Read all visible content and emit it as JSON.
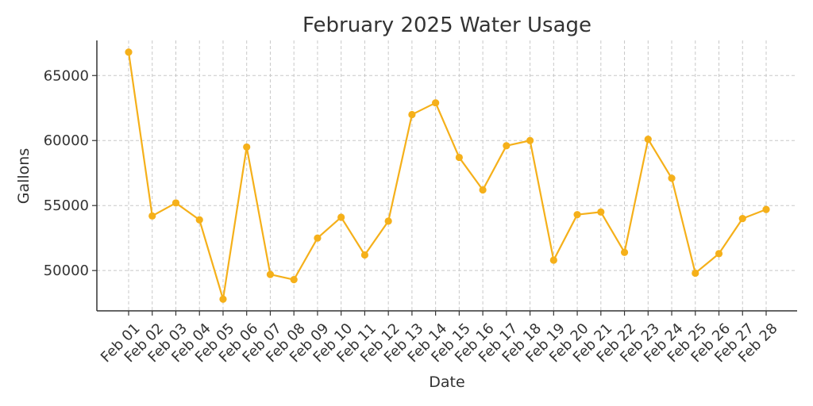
{
  "chart_data": {
    "type": "line",
    "title": "February 2025 Water Usage",
    "xlabel": "Date",
    "ylabel": "Gallons",
    "categories": [
      "Feb 01",
      "Feb 02",
      "Feb 03",
      "Feb 04",
      "Feb 05",
      "Feb 06",
      "Feb 07",
      "Feb 08",
      "Feb 09",
      "Feb 10",
      "Feb 11",
      "Feb 12",
      "Feb 13",
      "Feb 14",
      "Feb 15",
      "Feb 16",
      "Feb 17",
      "Feb 18",
      "Feb 19",
      "Feb 20",
      "Feb 21",
      "Feb 22",
      "Feb 23",
      "Feb 24",
      "Feb 25",
      "Feb 26",
      "Feb 27",
      "Feb 28"
    ],
    "series": [
      {
        "values": [
          66800,
          54200,
          55200,
          53900,
          47800,
          59500,
          49700,
          49300,
          52500,
          54100,
          51200,
          53800,
          62000,
          62900,
          58700,
          56200,
          59600,
          60000,
          50800,
          54300,
          54500,
          51400,
          60100,
          57100,
          49800,
          51300,
          54000,
          54700
        ],
        "color": "#f5b01a"
      }
    ],
    "yticks": [
      50000,
      55000,
      60000,
      65000
    ],
    "ylim": [
      46900,
      67700
    ],
    "grid": true
  }
}
